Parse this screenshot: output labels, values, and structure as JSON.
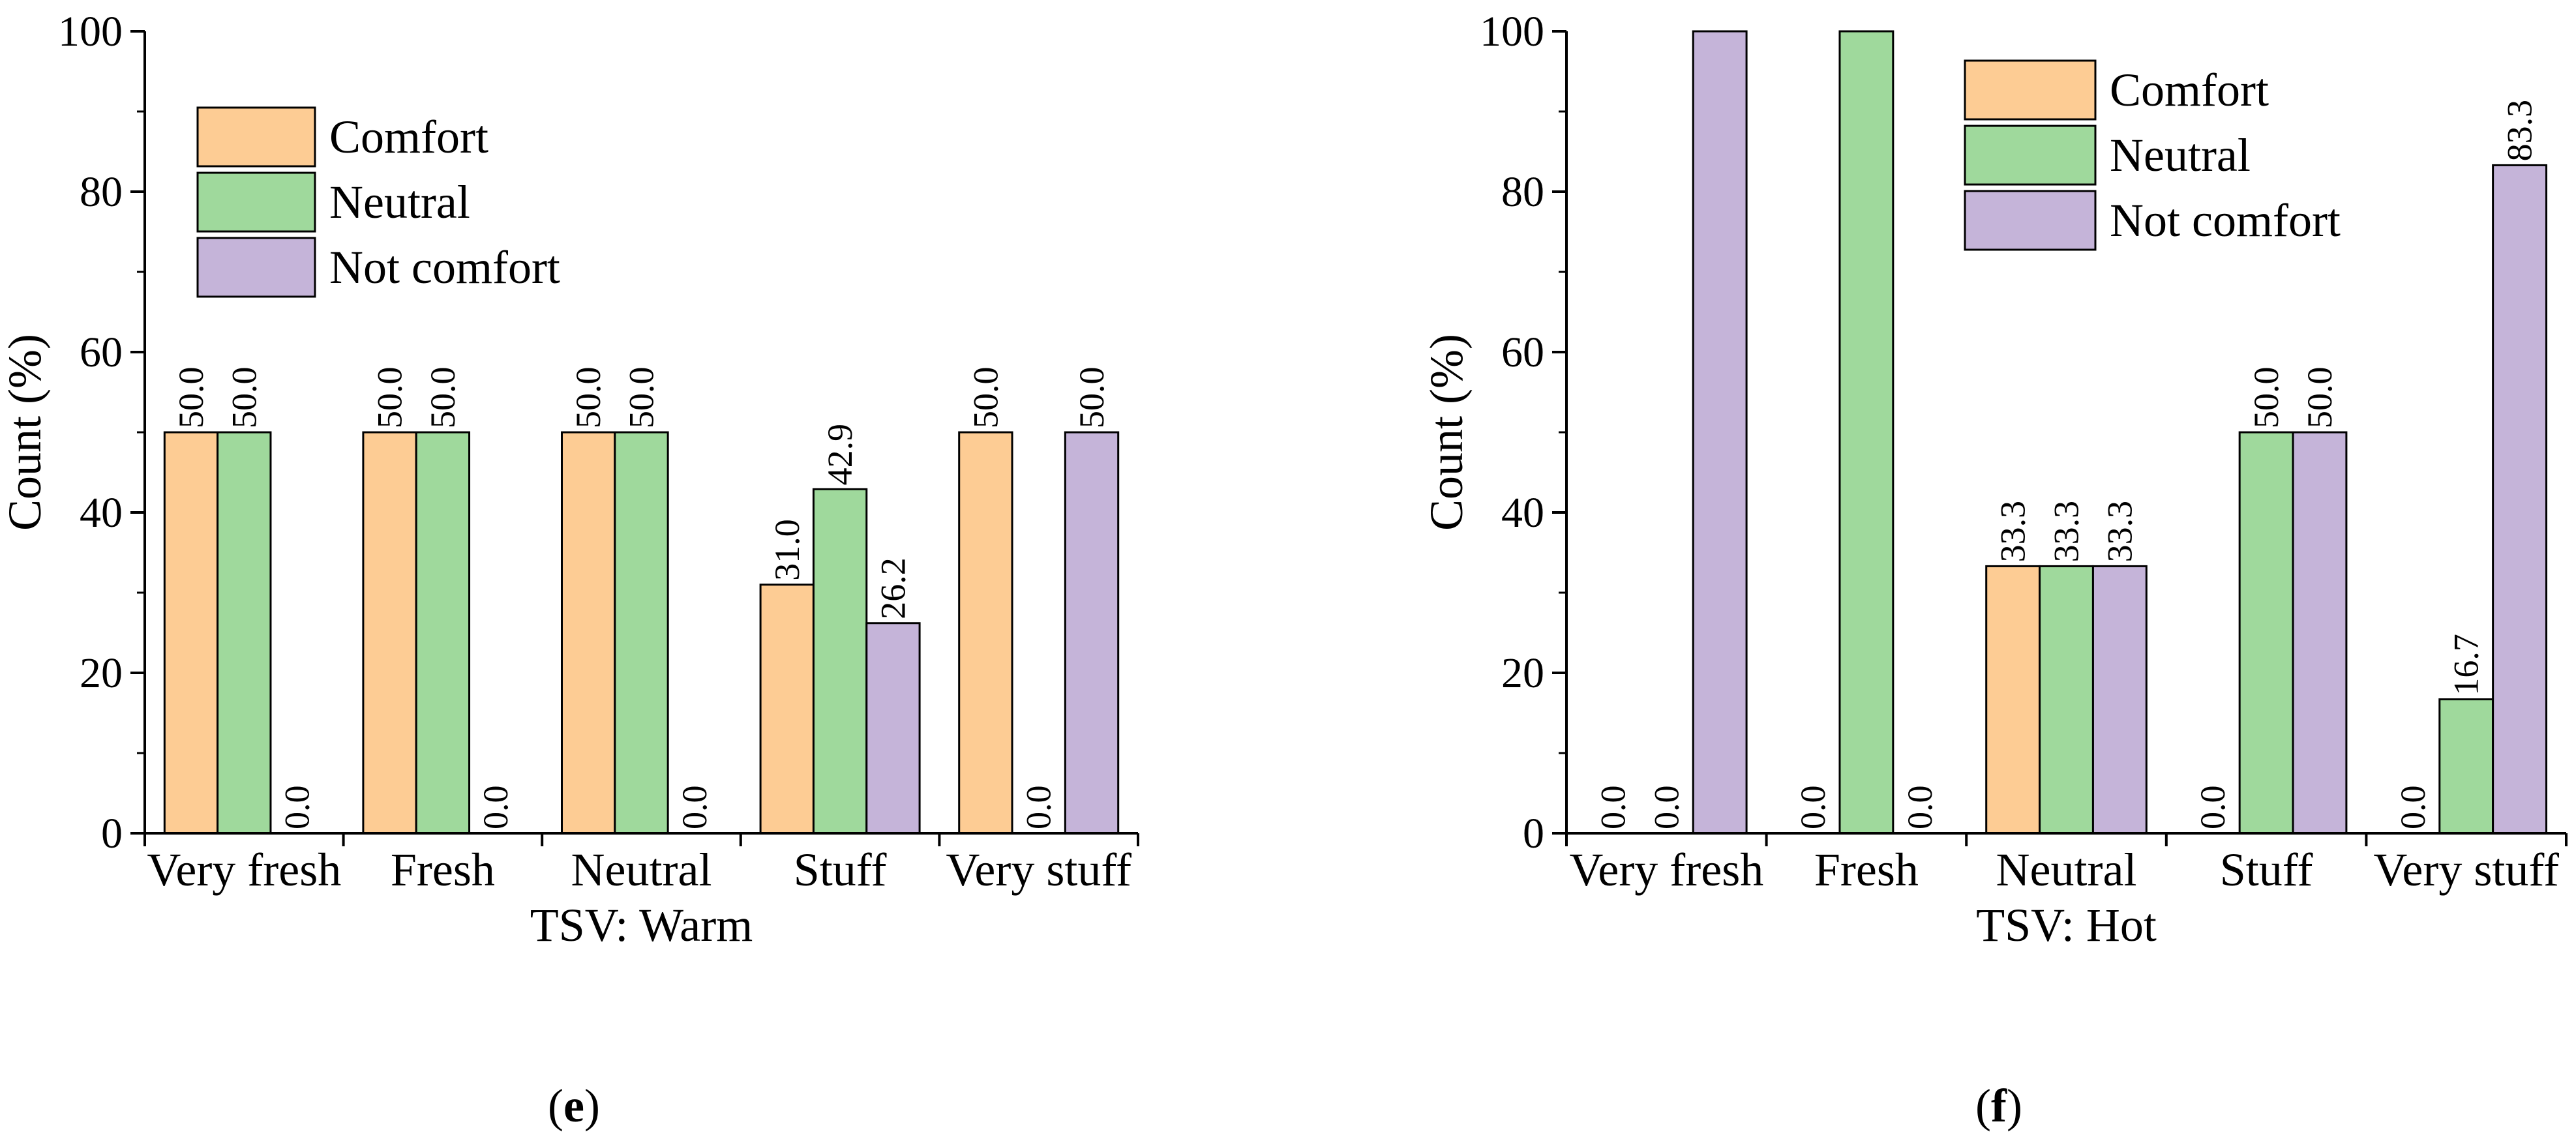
{
  "legend": [
    {
      "name": "Comfort",
      "color": "#FDCC94"
    },
    {
      "name": "Neutral",
      "color": "#9FD99C"
    },
    {
      "name": "Not comfort",
      "color": "#C5B4D9"
    }
  ],
  "chart_data": [
    {
      "type": "bar",
      "panel": "e",
      "xlabel": "TSV: Warm",
      "ylabel": "Count (%)",
      "ylim": [
        0,
        100
      ],
      "yticks": [
        0,
        20,
        40,
        60,
        80,
        100
      ],
      "categories": [
        "Very fresh",
        "Fresh",
        "Neutral",
        "Stuff",
        "Very stuff"
      ],
      "series": [
        {
          "name": "Comfort",
          "values": [
            50.0,
            50.0,
            50.0,
            31.0,
            50.0
          ]
        },
        {
          "name": "Neutral",
          "values": [
            50.0,
            50.0,
            50.0,
            42.9,
            0.0
          ]
        },
        {
          "name": "Not comfort",
          "values": [
            0.0,
            0.0,
            0.0,
            26.2,
            50.0
          ]
        }
      ],
      "data_labels": [
        [
          "50.0",
          "50.0",
          "50.0",
          "31.0",
          "50.0"
        ],
        [
          "50.0",
          "50.0",
          "50.0",
          "42.9",
          "0.0"
        ],
        [
          "0.0",
          "0.0",
          "0.0",
          "26.2",
          "50.0"
        ]
      ],
      "legend_position": "top-left",
      "grid": false
    },
    {
      "type": "bar",
      "panel": "f",
      "xlabel": "TSV: Hot",
      "ylabel": "Count (%)",
      "ylim": [
        0,
        100
      ],
      "yticks": [
        0,
        20,
        40,
        60,
        80,
        100
      ],
      "categories": [
        "Very fresh",
        "Fresh",
        "Neutral",
        "Stuff",
        "Very stuff"
      ],
      "series": [
        {
          "name": "Comfort",
          "values": [
            0.0,
            0.0,
            33.3,
            0.0,
            0.0
          ]
        },
        {
          "name": "Neutral",
          "values": [
            0.0,
            100.0,
            33.3,
            50.0,
            16.7
          ]
        },
        {
          "name": "Not comfort",
          "values": [
            100.0,
            0.0,
            33.3,
            50.0,
            83.3
          ]
        }
      ],
      "data_labels": [
        [
          "0.0",
          "0.0",
          "33.3",
          "0.0",
          "0.0"
        ],
        [
          "0.0",
          "",
          "33.3",
          "50.0",
          "16.7"
        ],
        [
          "",
          "0.0",
          "33.3",
          "50.0",
          "83.3"
        ]
      ],
      "legend_position": "top-right",
      "grid": false
    }
  ]
}
